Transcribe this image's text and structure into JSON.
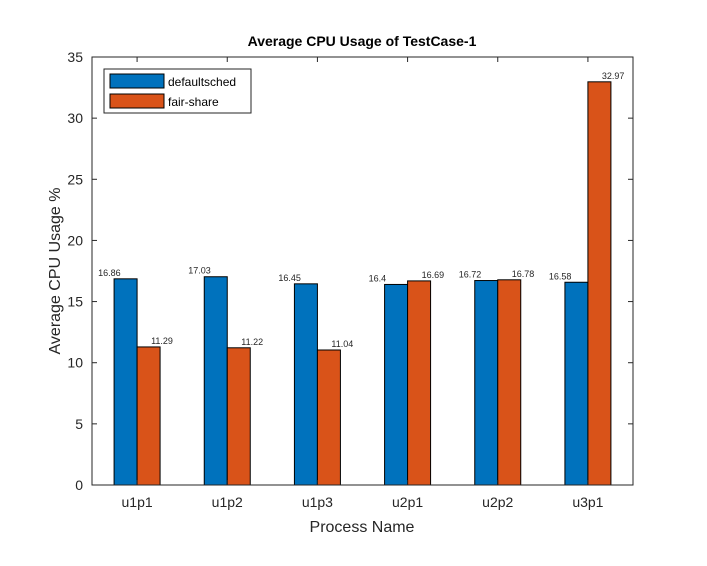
{
  "chart_data": {
    "type": "bar",
    "title": "Average CPU Usage of TestCase-1",
    "xlabel": "Process Name",
    "ylabel": "Average CPU Usage %",
    "categories": [
      "u1p1",
      "u1p2",
      "u1p3",
      "u2p1",
      "u2p2",
      "u3p1"
    ],
    "series": [
      {
        "name": "defaultsched",
        "color": "#0072BD",
        "values": [
          16.86,
          17.03,
          16.45,
          16.4,
          16.72,
          16.58
        ]
      },
      {
        "name": "fair-share",
        "color": "#D95319",
        "values": [
          11.29,
          11.22,
          11.04,
          16.69,
          16.78,
          32.97
        ]
      }
    ],
    "ylim": [
      0,
      35
    ],
    "yticks": [
      0,
      5,
      10,
      15,
      20,
      25,
      30,
      35
    ],
    "grid": false,
    "legend_position": "top-left"
  }
}
